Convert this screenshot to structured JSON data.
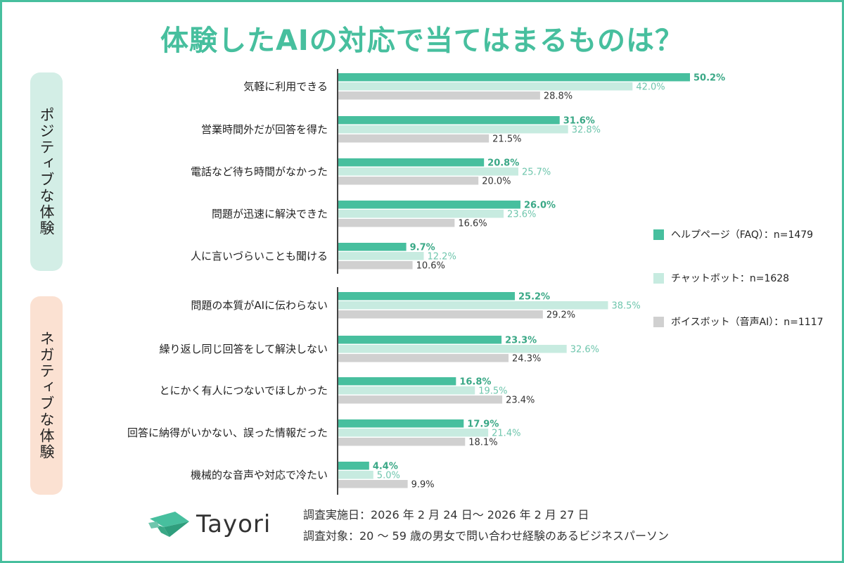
{
  "title": "体験したAIの対応で当てはまるものは？",
  "groups": {
    "positive": "ポジティブな体験",
    "negative": "ネガティブな体験"
  },
  "legend": [
    {
      "label": "ヘルプページ（FAQ）：n=1479",
      "color": "#47bf9e"
    },
    {
      "label": "チャットボット：n=1628",
      "color": "#c7ebe0"
    },
    {
      "label": "ボイスボット（音声AI）：n=1117",
      "color": "#d0d0d0"
    }
  ],
  "chart_data": {
    "type": "bar",
    "orientation": "horizontal",
    "categories": [
      "気軽に利用できる",
      "営業時間外だが回答を得た",
      "電話など待ち時間がなかった",
      "問題が迅速に解決できた",
      "人に言いづらいことも聞ける",
      "問題の本質がAIに伝わらない",
      "繰り返し同じ回答をして解決しない",
      "とにかく有人につないでほしかった",
      "回答に納得がいかない、誤った情報だった",
      "機械的な音声や対応で冷たい"
    ],
    "series": [
      {
        "name": "ヘルプページ（FAQ）：n=1479",
        "color": "#47bf9e",
        "label_color": "#3aa886",
        "values": [
          50.2,
          31.6,
          20.8,
          26.0,
          9.7,
          25.2,
          23.3,
          16.8,
          17.9,
          4.4
        ]
      },
      {
        "name": "チャットボット：n=1628",
        "color": "#c7ebe0",
        "label_color": "#6fc6ad",
        "values": [
          42.0,
          32.8,
          25.7,
          23.6,
          12.2,
          38.5,
          32.6,
          19.5,
          21.4,
          5.0
        ]
      },
      {
        "name": "ボイスボット（音声AI）：n=1117",
        "color": "#d0d0d0",
        "label_color": "#333333",
        "values": [
          28.8,
          21.5,
          20.0,
          16.6,
          10.6,
          29.2,
          24.3,
          23.4,
          18.1,
          9.9
        ]
      }
    ],
    "value_suffix": "%",
    "grid": false
  },
  "logo": {
    "word": "Tayori"
  },
  "notes": {
    "date": "調査実施日：2026 年 2 月 24 日～ 2026 年 2 月 27 日",
    "target": "調査対象：20 ～ 59 歳の男女で問い合わせ経験のあるビジネスパーソン"
  }
}
